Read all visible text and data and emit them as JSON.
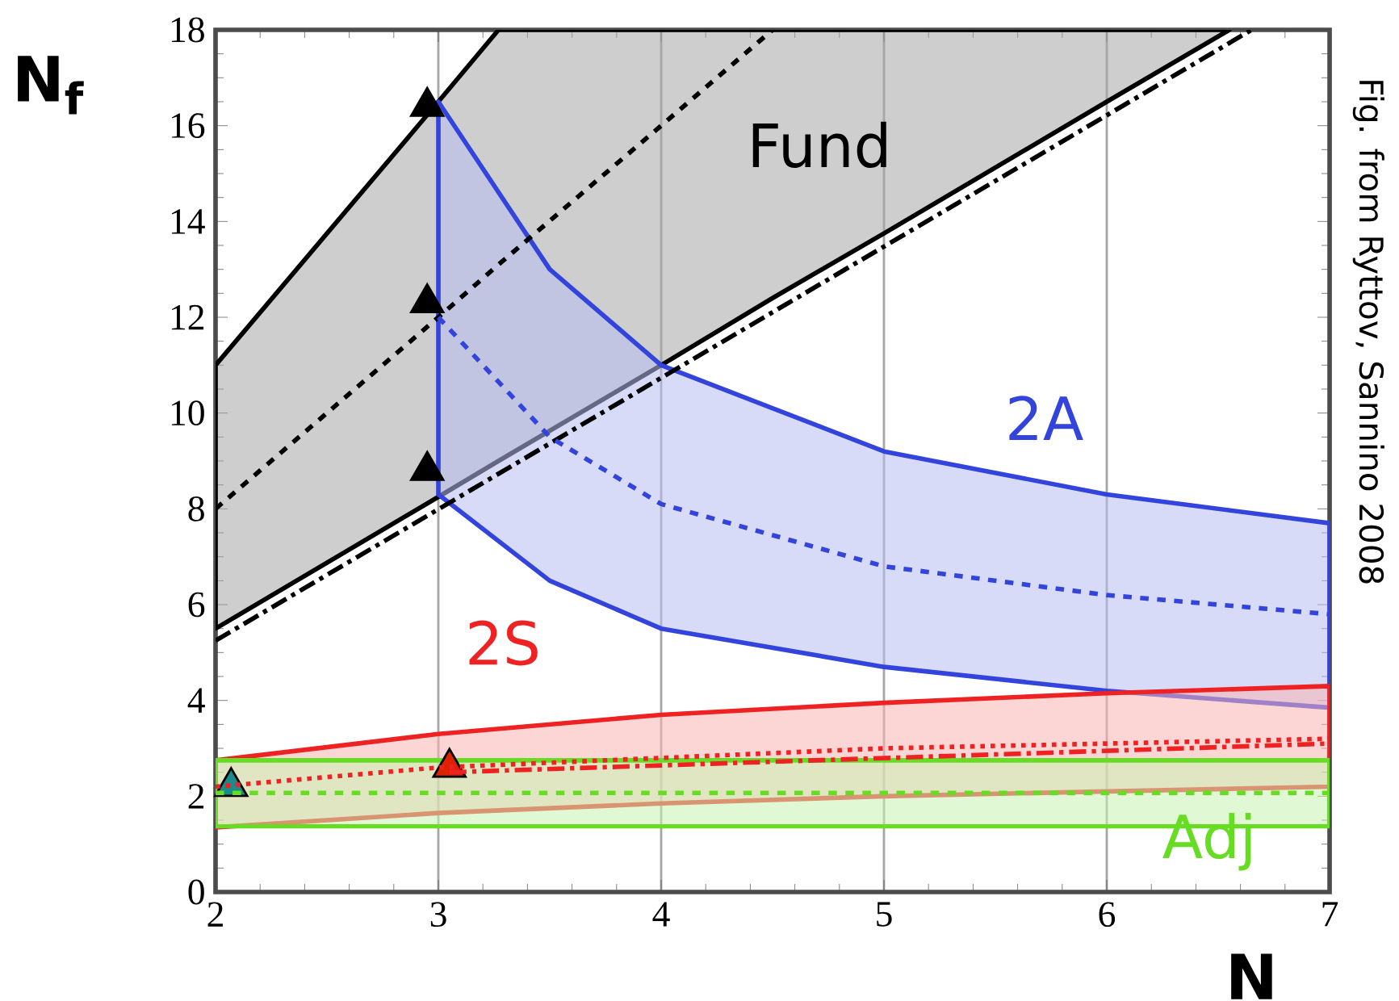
{
  "chart_data": {
    "type": "line",
    "xlabel": "N",
    "ylabel": "N$_{f}$",
    "annotations": [
      "Fig. from Ryttov, Sannino 2008"
    ],
    "xlim": [
      2,
      7
    ],
    "ylim": [
      0,
      18
    ],
    "xticks": [
      2,
      3,
      4,
      5,
      6,
      7
    ],
    "yticks": [
      0,
      2,
      4,
      6,
      8,
      10,
      12,
      14,
      16,
      18
    ],
    "grid": "x",
    "series": [
      {
        "name": "Fund",
        "color": "#000000",
        "line_style": "dashed",
        "x": [
          2,
          3,
          3.27,
          4,
          4.5,
          5,
          6,
          6.55
        ],
        "values": [
          8,
          12,
          13.1,
          16,
          18,
          null,
          null,
          null
        ],
        "lower": [
          5.5,
          8.25,
          9,
          11,
          12.4,
          13.75,
          16.5,
          18
        ],
        "upper": [
          11,
          16.5,
          18,
          18,
          18,
          18,
          18,
          18
        ]
      },
      {
        "color": "#000000",
        "line_style": "dashdot",
        "x": [
          2,
          6.65
        ],
        "values": [
          5.25,
          18
        ]
      },
      {
        "name": "2A",
        "color": "#3344dd",
        "line_style": "dashed",
        "x": [
          3,
          3.5,
          4,
          5,
          6,
          7
        ],
        "values": [
          12,
          9.5,
          8.1,
          6.8,
          6.2,
          5.8
        ],
        "lower": [
          8.3,
          6.5,
          5.5,
          4.7,
          4.2,
          3.85
        ],
        "upper": [
          16.5,
          13,
          11,
          9.2,
          8.3,
          7.7
        ]
      },
      {
        "name": "2S",
        "color": "#ee2222",
        "line_style": "dotted",
        "x": [
          2,
          3,
          4,
          5,
          6,
          7
        ],
        "values": [
          2.2,
          2.6,
          2.8,
          3.0,
          3.1,
          3.2
        ],
        "lower": [
          1.35,
          1.65,
          1.85,
          2.0,
          2.1,
          2.2
        ],
        "upper": [
          2.75,
          3.3,
          3.7,
          3.95,
          4.15,
          4.3
        ]
      },
      {
        "color": "#ee2222",
        "line_style": "dashdot",
        "x": [
          3.05,
          7
        ],
        "values": [
          2.5,
          3.1
        ]
      },
      {
        "name": "Adj",
        "color": "#66dd22",
        "line_style": "dashed",
        "x": [
          2,
          7
        ],
        "values": [
          2.07,
          2.07
        ],
        "lower": [
          1.37,
          1.37
        ],
        "upper": [
          2.75,
          2.75
        ]
      },
      {
        "type": "scatter",
        "marker": "triangle",
        "x": [
          2.95,
          2.95,
          2.95,
          3.05,
          2.07
        ],
        "values": [
          16.4,
          12.3,
          8.8,
          2.6,
          2.2
        ],
        "colors": [
          "#000000",
          "#000000",
          "#000000",
          "#dd2200",
          "#1a8a8a"
        ]
      }
    ]
  }
}
